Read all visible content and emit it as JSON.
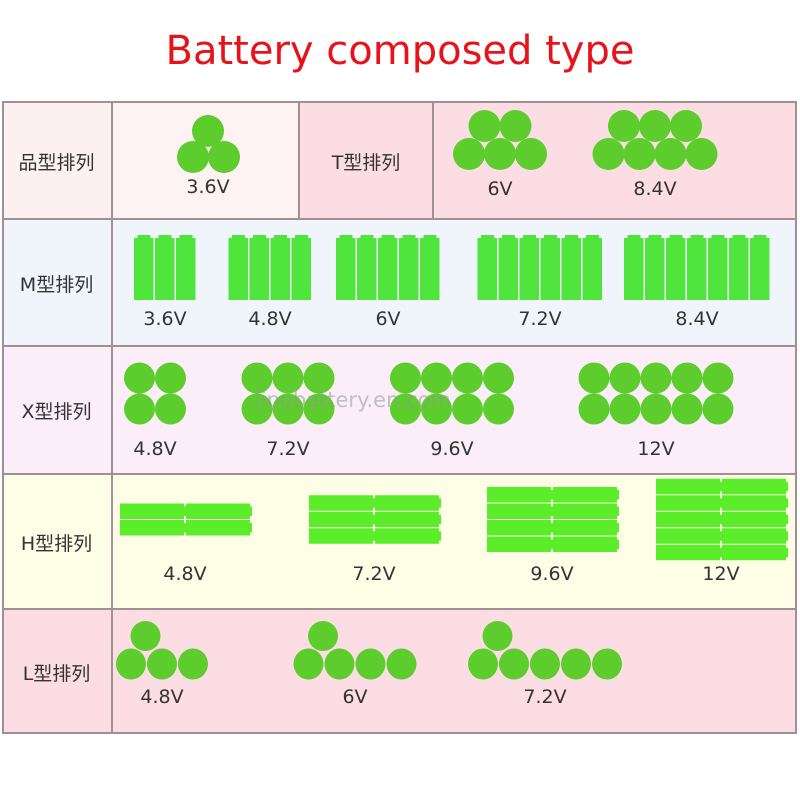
{
  "title": "Battery composed type",
  "watermark": "lipobattery.en.com",
  "colors": {
    "title": "#e8121b",
    "cell_round": "#5ccd2c",
    "cell_m": "#4fe53c",
    "cell_h": "#5ced2a"
  },
  "rows": [
    {
      "label": "品型排列",
      "sublabel": "T型排列",
      "groups": [
        {
          "voltage": "3.6V",
          "layout": "triangle",
          "cells": 3
        },
        {
          "voltage": "6V",
          "layout": "two-row",
          "cells": 5
        },
        {
          "voltage": "8.4V",
          "layout": "two-row",
          "cells": 7
        }
      ]
    },
    {
      "label": "M型排列",
      "groups": [
        {
          "voltage": "3.6V",
          "layout": "side-by-side",
          "cells": 3
        },
        {
          "voltage": "4.8V",
          "layout": "side-by-side",
          "cells": 4
        },
        {
          "voltage": "6V",
          "layout": "side-by-side",
          "cells": 5
        },
        {
          "voltage": "7.2V",
          "layout": "side-by-side",
          "cells": 6
        },
        {
          "voltage": "8.4V",
          "layout": "side-by-side",
          "cells": 7
        }
      ]
    },
    {
      "label": "X型排列",
      "groups": [
        {
          "voltage": "4.8V",
          "layout": "grid",
          "cells": 4
        },
        {
          "voltage": "7.2V",
          "layout": "grid",
          "cells": 6
        },
        {
          "voltage": "9.6V",
          "layout": "grid",
          "cells": 8
        },
        {
          "voltage": "12V",
          "layout": "grid",
          "cells": 10
        }
      ]
    },
    {
      "label": "H型排列",
      "groups": [
        {
          "voltage": "4.8V",
          "layout": "horizontal",
          "cells": 4
        },
        {
          "voltage": "7.2V",
          "layout": "horizontal",
          "cells": 6
        },
        {
          "voltage": "9.6V",
          "layout": "horizontal",
          "cells": 8
        },
        {
          "voltage": "12V",
          "layout": "horizontal",
          "cells": 10
        }
      ]
    },
    {
      "label": "L型排列",
      "groups": [
        {
          "voltage": "4.8V",
          "layout": "L",
          "cells": 4
        },
        {
          "voltage": "6V",
          "layout": "L",
          "cells": 5
        },
        {
          "voltage": "7.2V",
          "layout": "L",
          "cells": 6
        }
      ]
    }
  ]
}
